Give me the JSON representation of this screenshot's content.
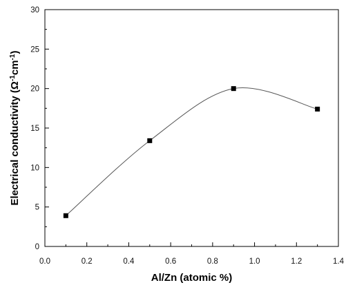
{
  "chart_data": {
    "type": "scatter",
    "title": "",
    "xlabel": "Al/Zn (atomic %)",
    "ylabel": {
      "prefix": "Electrical conductivity (",
      "unit_main_1": "Ω",
      "unit_sup_1": "-1",
      "unit_main_2": "cm",
      "unit_sup_2": "-1",
      "suffix": ")"
    },
    "xlim": [
      0.0,
      1.4
    ],
    "ylim": [
      0,
      30
    ],
    "x_ticks": [
      "0.0",
      "0.2",
      "0.4",
      "0.6",
      "0.8",
      "1.0",
      "1.2",
      "1.4"
    ],
    "y_ticks": [
      "0",
      "5",
      "10",
      "15",
      "20",
      "25",
      "30"
    ],
    "grid": false,
    "legend": "none",
    "marker": "square",
    "smooth_line": true,
    "colors": {
      "marker": "#000000",
      "line": "#555555",
      "axis": "#000000"
    },
    "series": [
      {
        "x": [
          0.1,
          0.5,
          0.9,
          1.3
        ],
        "y": [
          3.9,
          13.4,
          20.0,
          17.4
        ]
      }
    ]
  }
}
